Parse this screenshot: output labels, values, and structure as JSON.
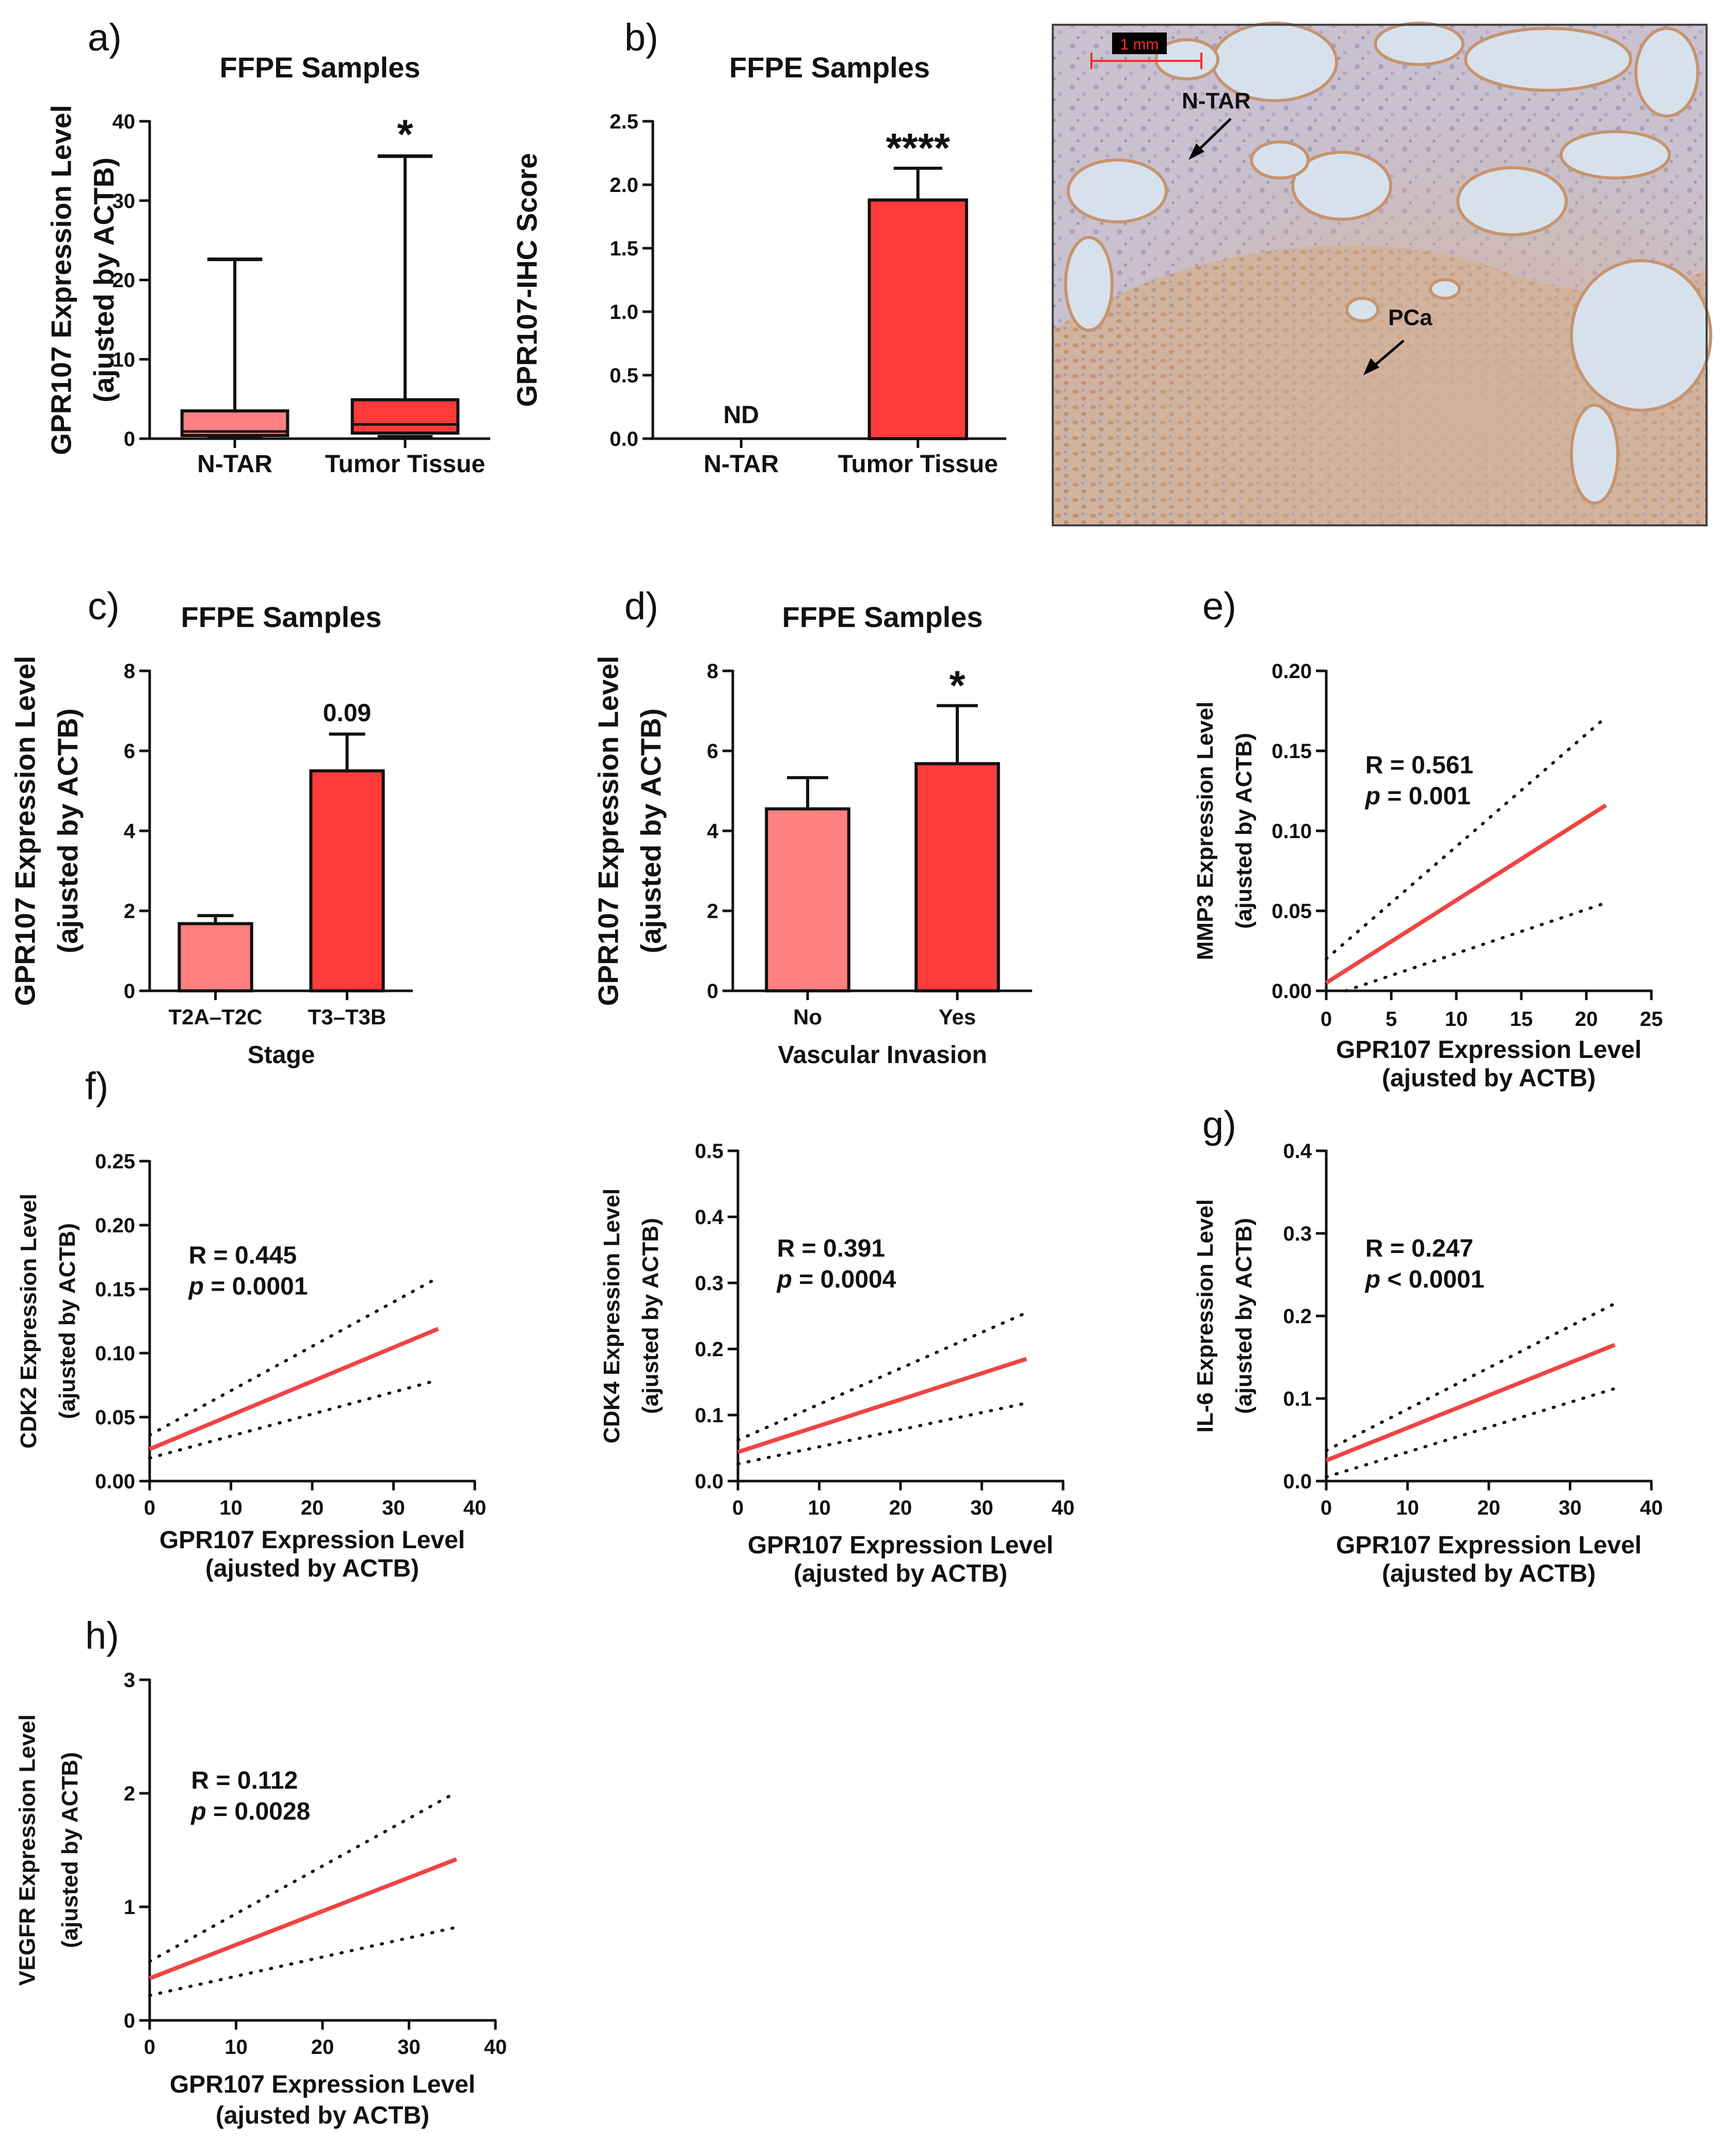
{
  "panel_labels": {
    "a": "a)",
    "b": "b)",
    "c": "c)",
    "d": "d)",
    "e": "e)",
    "f": "f)",
    "g": "g)",
    "h": "h)"
  },
  "histology": {
    "scale_bar": "1 mm",
    "label_ntar": "N-TAR",
    "label_pca": "PCa"
  },
  "colors": {
    "light_red": "#ff8080",
    "red": "#ff3b3b",
    "fit_line": "#ef4444",
    "axis": "#111111"
  },
  "chart_data": [
    {
      "id": "a",
      "type": "box",
      "title": "FFPE Samples",
      "ylabel": [
        "GPR107 Expression Level",
        "(ajusted by ACTB)"
      ],
      "ylim": [
        0,
        40
      ],
      "yticks": [
        0,
        10,
        20,
        30,
        40
      ],
      "ytick_labels": [
        "0",
        "10",
        "20",
        "30",
        "40"
      ],
      "categories": [
        "N-TAR",
        "Tumor Tissue"
      ],
      "boxes": [
        {
          "min": 0,
          "q1": 0.4,
          "median": 0.9,
          "q3": 3.5,
          "max": 22.6,
          "color": "#ff8080"
        },
        {
          "min": 0,
          "q1": 0.7,
          "median": 1.8,
          "q3": 4.9,
          "max": 35.6,
          "color": "#ff3b3b"
        }
      ],
      "annotations": [
        "",
        "*"
      ]
    },
    {
      "id": "b",
      "type": "bar",
      "title": "FFPE Samples",
      "ylabel": [
        "GPR107-IHC Score"
      ],
      "ylim": [
        0,
        2.5
      ],
      "yticks": [
        0,
        0.5,
        1.0,
        1.5,
        2.0,
        2.5
      ],
      "ytick_labels": [
        "0.0",
        "0.5",
        "1.0",
        "1.5",
        "2.0",
        "2.5"
      ],
      "categories": [
        "N-TAR",
        "Tumor Tissue"
      ],
      "values": [
        0,
        1.88
      ],
      "errors": [
        0,
        0.25
      ],
      "colors": [
        "#ff8080",
        "#ff3b3b"
      ],
      "annotations": [
        "ND",
        "****"
      ]
    },
    {
      "id": "c",
      "type": "bar",
      "title": "FFPE Samples",
      "ylabel": [
        "GPR107 Expression Level",
        "(ajusted by ACTB)"
      ],
      "xlabel": "Stage",
      "ylim": [
        0,
        8
      ],
      "yticks": [
        0,
        2,
        4,
        6,
        8
      ],
      "ytick_labels": [
        "0",
        "2",
        "4",
        "6",
        "8"
      ],
      "categories": [
        "T2A–T2C",
        "T3–T3B"
      ],
      "values": [
        1.68,
        5.5
      ],
      "errors": [
        0.2,
        0.92
      ],
      "colors": [
        "#ff8080",
        "#ff3b3b"
      ],
      "annotations": [
        "",
        "0.09"
      ]
    },
    {
      "id": "d",
      "type": "bar",
      "title": "FFPE Samples",
      "ylabel": [
        "GPR107 Expression Level",
        "(ajusted by ACTB)"
      ],
      "xlabel": "Vascular Invasion",
      "ylim": [
        0,
        8
      ],
      "yticks": [
        0,
        2,
        4,
        6,
        8
      ],
      "ytick_labels": [
        "0",
        "2",
        "4",
        "6",
        "8"
      ],
      "categories": [
        "No",
        "Yes"
      ],
      "values": [
        4.55,
        5.68
      ],
      "errors": [
        0.78,
        1.45
      ],
      "colors": [
        "#ff8080",
        "#ff3b3b"
      ],
      "annotations": [
        "",
        "*"
      ]
    },
    {
      "id": "e",
      "type": "line",
      "ylabel": [
        "MMP3 Expression Level",
        "(ajusted by ACTB)"
      ],
      "xlabel": [
        "GPR107 Expression Level",
        "(ajusted by ACTB)"
      ],
      "xlim": [
        0,
        25
      ],
      "xticks": [
        0,
        5,
        10,
        15,
        20,
        25
      ],
      "xtick_labels": [
        "0",
        "5",
        "10",
        "15",
        "20",
        "25"
      ],
      "ylim": [
        0,
        0.2
      ],
      "yticks": [
        0,
        0.05,
        0.1,
        0.15,
        0.2
      ],
      "ytick_labels": [
        "0.00",
        "0.05",
        "0.10",
        "0.15",
        "0.20"
      ],
      "fit": {
        "x": [
          0,
          21.5
        ],
        "y": [
          0.005,
          0.116
        ]
      },
      "ci_upper": {
        "x": [
          0,
          21.5
        ],
        "y": [
          0.02,
          0.171
        ]
      },
      "ci_lower": {
        "x": [
          1.5,
          21.5
        ],
        "y": [
          0.0,
          0.055
        ]
      },
      "r_text": "R = 0.561",
      "p_label": "p",
      "p_value": " = 0.001"
    },
    {
      "id": "f",
      "type": "line",
      "ylabel": [
        "CDK2 Expression Level",
        "(ajusted by ACTB)"
      ],
      "xlabel": [
        "GPR107 Expression Level",
        "(ajusted by ACTB)"
      ],
      "xlim": [
        0,
        40
      ],
      "xticks": [
        0,
        10,
        20,
        30,
        40
      ],
      "xtick_labels": [
        "0",
        "10",
        "20",
        "30",
        "40"
      ],
      "ylim": [
        0,
        0.25
      ],
      "yticks": [
        0,
        0.05,
        0.1,
        0.15,
        0.2,
        0.25
      ],
      "ytick_labels": [
        "0.00",
        "0.05",
        "0.10",
        "0.15",
        "0.20",
        "0.25"
      ],
      "fit": {
        "x": [
          0,
          35.5
        ],
        "y": [
          0.025,
          0.119
        ]
      },
      "ci_upper": {
        "x": [
          0,
          35.5
        ],
        "y": [
          0.036,
          0.159
        ]
      },
      "ci_lower": {
        "x": [
          0,
          35.5
        ],
        "y": [
          0.018,
          0.079
        ]
      },
      "r_text": "R = 0.445",
      "p_label": "p",
      "p_value": " = 0.0001"
    },
    {
      "id": "f2",
      "type": "line",
      "ylabel": [
        "CDK4 Expression Level",
        "(ajusted by ACTB)"
      ],
      "xlabel": [
        "GPR107 Expression Level",
        "(ajusted by ACTB)"
      ],
      "xlim": [
        0,
        40
      ],
      "xticks": [
        0,
        10,
        20,
        30,
        40
      ],
      "xtick_labels": [
        "0",
        "10",
        "20",
        "30",
        "40"
      ],
      "ylim": [
        0,
        0.5
      ],
      "yticks": [
        0,
        0.1,
        0.2,
        0.3,
        0.4,
        0.5
      ],
      "ytick_labels": [
        "0.0",
        "0.1",
        "0.2",
        "0.3",
        "0.4",
        "0.5"
      ],
      "fit": {
        "x": [
          0,
          35.5
        ],
        "y": [
          0.044,
          0.185
        ]
      },
      "ci_upper": {
        "x": [
          0,
          35.5
        ],
        "y": [
          0.062,
          0.255
        ]
      },
      "ci_lower": {
        "x": [
          0,
          35.5
        ],
        "y": [
          0.026,
          0.118
        ]
      },
      "r_text": "R = 0.391",
      "p_label": "p",
      "p_value": " = 0.0004"
    },
    {
      "id": "g",
      "type": "line",
      "ylabel": [
        "IL-6 Expression Level",
        "(ajusted by ACTB)"
      ],
      "xlabel": [
        "GPR107 Expression Level",
        "(ajusted by ACTB)"
      ],
      "xlim": [
        0,
        40
      ],
      "xticks": [
        0,
        10,
        20,
        30,
        40
      ],
      "xtick_labels": [
        "0",
        "10",
        "20",
        "30",
        "40"
      ],
      "ylim": [
        0,
        0.4
      ],
      "yticks": [
        0,
        0.1,
        0.2,
        0.3,
        0.4
      ],
      "ytick_labels": [
        "0.0",
        "0.1",
        "0.2",
        "0.3",
        "0.4"
      ],
      "fit": {
        "x": [
          0,
          35.5
        ],
        "y": [
          0.025,
          0.165
        ]
      },
      "ci_upper": {
        "x": [
          0,
          35.5
        ],
        "y": [
          0.037,
          0.215
        ]
      },
      "ci_lower": {
        "x": [
          0,
          35.5
        ],
        "y": [
          0.005,
          0.112
        ]
      },
      "r_text": "R = 0.247",
      "p_label": "p",
      "p_value": " < 0.0001"
    },
    {
      "id": "h",
      "type": "line",
      "ylabel": [
        "VEGFR Expression Level",
        "(ajusted by ACTB)"
      ],
      "xlabel": [
        "GPR107 Expression Level",
        "(ajusted by ACTB)"
      ],
      "xlim": [
        0,
        40
      ],
      "xticks": [
        0,
        10,
        20,
        30,
        40
      ],
      "xtick_labels": [
        "0",
        "10",
        "20",
        "30",
        "40"
      ],
      "ylim": [
        0,
        3
      ],
      "yticks": [
        0,
        1,
        2,
        3
      ],
      "ytick_labels": [
        "0",
        "1",
        "2",
        "3"
      ],
      "fit": {
        "x": [
          0,
          35.5
        ],
        "y": [
          0.37,
          1.42
        ]
      },
      "ci_upper": {
        "x": [
          0,
          35.5
        ],
        "y": [
          0.52,
          2.01
        ]
      },
      "ci_lower": {
        "x": [
          0,
          35.5
        ],
        "y": [
          0.22,
          0.82
        ]
      },
      "r_text": "R = 0.112",
      "p_label": "p",
      "p_value": " = 0.0028"
    }
  ]
}
